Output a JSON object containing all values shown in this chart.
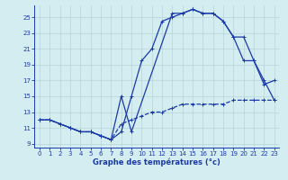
{
  "xlabel": "Graphe des températures (°c)",
  "bg_color": "#d4edf0",
  "grid_color": "#b8d4d8",
  "line_color": "#1a3aaa",
  "xlim": [
    -0.5,
    23.5
  ],
  "ylim": [
    8.5,
    26.5
  ],
  "xticks": [
    0,
    1,
    2,
    3,
    4,
    5,
    6,
    7,
    8,
    9,
    10,
    11,
    12,
    13,
    14,
    15,
    16,
    17,
    18,
    19,
    20,
    21,
    22,
    23
  ],
  "yticks": [
    9,
    11,
    13,
    15,
    17,
    19,
    21,
    23,
    25
  ],
  "curve1_x": [
    0,
    1,
    2,
    3,
    4,
    5,
    6,
    7,
    8,
    9,
    10,
    11,
    12,
    13,
    14,
    15,
    16,
    17,
    18,
    19,
    20,
    21,
    22,
    23
  ],
  "curve1_y": [
    12.0,
    12.0,
    11.5,
    11.0,
    10.5,
    10.5,
    10.0,
    9.5,
    11.5,
    12.0,
    12.5,
    13.0,
    13.0,
    13.5,
    14.0,
    14.0,
    14.0,
    14.0,
    14.0,
    14.5,
    14.5,
    14.5,
    14.5,
    14.5
  ],
  "curve2_x": [
    0,
    1,
    2,
    3,
    4,
    5,
    6,
    7,
    8,
    9,
    10,
    11,
    12,
    13,
    14,
    15,
    16,
    17,
    18,
    19,
    20,
    21,
    22,
    23
  ],
  "curve2_y": [
    12.0,
    12.0,
    11.5,
    11.0,
    10.5,
    10.5,
    10.0,
    9.5,
    10.5,
    15.0,
    19.5,
    21.0,
    24.5,
    25.0,
    25.5,
    26.0,
    25.5,
    25.5,
    24.5,
    22.5,
    19.5,
    19.5,
    16.5,
    17.0
  ],
  "curve3_x": [
    0,
    1,
    2,
    3,
    4,
    5,
    6,
    7,
    8,
    9,
    13,
    14,
    15,
    16,
    17,
    18,
    19,
    20,
    21,
    22,
    23
  ],
  "curve3_y": [
    12.0,
    12.0,
    11.5,
    11.0,
    10.5,
    10.5,
    10.0,
    9.5,
    15.0,
    10.5,
    25.5,
    25.5,
    26.0,
    25.5,
    25.5,
    24.5,
    22.5,
    22.5,
    19.5,
    17.0,
    14.5
  ],
  "curve1_style": "--",
  "curve2_style": "-",
  "curve3_style": "-"
}
